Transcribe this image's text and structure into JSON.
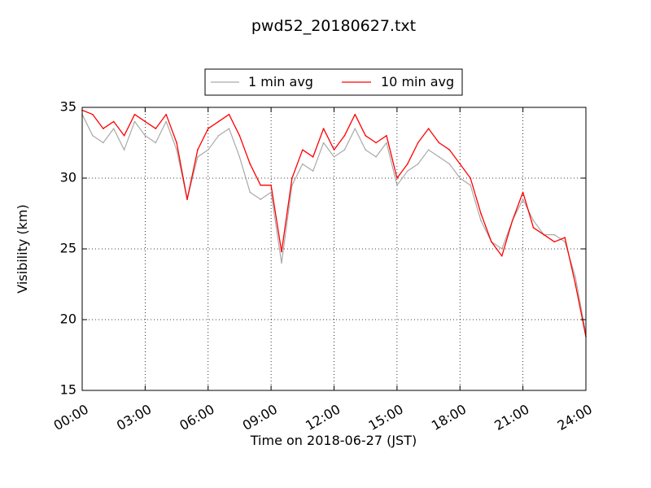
{
  "chart_data": {
    "type": "line",
    "title": "pwd52_20180627.txt",
    "xlabel": "Time on 2018-06-27 (JST)",
    "ylabel": "Visibility (km)",
    "xlim": [
      "00:00",
      "24:00"
    ],
    "ylim": [
      15,
      35
    ],
    "x_ticks": [
      "00:00",
      "03:00",
      "06:00",
      "09:00",
      "12:00",
      "15:00",
      "18:00",
      "21:00",
      "24:00"
    ],
    "y_ticks": [
      15,
      20,
      25,
      30,
      35
    ],
    "grid": true,
    "legend_position": "top-center",
    "series": [
      {
        "name": "1 min avg",
        "color": "#a9a9a9",
        "x": [
          "00:00",
          "00:30",
          "01:00",
          "01:30",
          "02:00",
          "02:30",
          "03:00",
          "03:30",
          "04:00",
          "04:30",
          "05:00",
          "05:30",
          "06:00",
          "06:30",
          "07:00",
          "07:30",
          "08:00",
          "08:30",
          "09:00",
          "09:30",
          "10:00",
          "10:30",
          "11:00",
          "11:30",
          "12:00",
          "12:30",
          "13:00",
          "13:30",
          "14:00",
          "14:30",
          "15:00",
          "15:30",
          "16:00",
          "16:30",
          "17:00",
          "17:30",
          "18:00",
          "18:30",
          "19:00",
          "19:30",
          "20:00",
          "20:30",
          "21:00",
          "21:30",
          "22:00",
          "22:30",
          "23:00",
          "23:30",
          "24:00"
        ],
        "y": [
          34.5,
          33.0,
          32.5,
          33.5,
          32.0,
          34.0,
          33.0,
          32.5,
          34.0,
          32.0,
          28.5,
          31.5,
          32.0,
          33.0,
          33.5,
          31.5,
          29.0,
          28.5,
          29.0,
          24.0,
          29.5,
          31.0,
          30.5,
          32.5,
          31.5,
          32.0,
          33.5,
          32.0,
          31.5,
          32.5,
          29.5,
          30.5,
          31.0,
          32.0,
          31.5,
          31.0,
          30.0,
          29.5,
          27.0,
          25.5,
          25.0,
          27.0,
          28.5,
          27.0,
          26.0,
          26.0,
          25.5,
          23.0,
          19.0
        ]
      },
      {
        "name": "10 min avg",
        "color": "#ff0000",
        "x": [
          "00:00",
          "00:30",
          "01:00",
          "01:30",
          "02:00",
          "02:30",
          "03:00",
          "03:30",
          "04:00",
          "04:30",
          "05:00",
          "05:30",
          "06:00",
          "06:30",
          "07:00",
          "07:30",
          "08:00",
          "08:30",
          "09:00",
          "09:30",
          "10:00",
          "10:30",
          "11:00",
          "11:30",
          "12:00",
          "12:30",
          "13:00",
          "13:30",
          "14:00",
          "14:30",
          "15:00",
          "15:30",
          "16:00",
          "16:30",
          "17:00",
          "17:30",
          "18:00",
          "18:30",
          "19:00",
          "19:30",
          "20:00",
          "20:30",
          "21:00",
          "21:30",
          "22:00",
          "22:30",
          "23:00",
          "23:30",
          "24:00"
        ],
        "y": [
          34.8,
          34.5,
          33.5,
          34.0,
          33.0,
          34.5,
          34.0,
          33.5,
          34.5,
          32.5,
          28.5,
          32.0,
          33.5,
          34.0,
          34.5,
          33.0,
          31.0,
          29.5,
          29.5,
          24.8,
          30.0,
          32.0,
          31.5,
          33.5,
          32.0,
          33.0,
          34.5,
          33.0,
          32.5,
          33.0,
          30.0,
          31.0,
          32.5,
          33.5,
          32.5,
          32.0,
          31.0,
          30.0,
          27.5,
          25.5,
          24.5,
          27.0,
          29.0,
          26.5,
          26.0,
          25.5,
          25.8,
          22.5,
          18.8
        ]
      }
    ]
  }
}
